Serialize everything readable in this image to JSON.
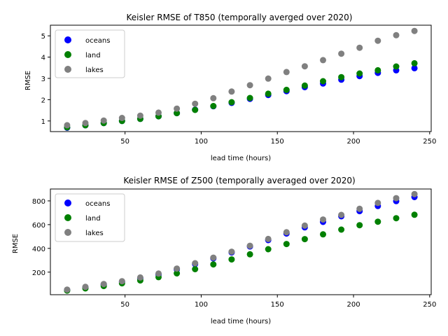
{
  "colors": {
    "oceans": "#0000ff",
    "land": "#008000",
    "lakes": "#808080",
    "axis": "#000000",
    "legend_border": "#cccccc"
  },
  "chart_data": [
    {
      "type": "scatter",
      "title": "Keisler RMSE of T850 (temporally averged over 2020)",
      "xlabel": "lead time (hours)",
      "ylabel": "RMSE",
      "xlim": [
        1,
        251
      ],
      "ylim": [
        0.5,
        5.5
      ],
      "xticks": [
        50,
        100,
        150,
        200,
        250
      ],
      "yticks": [
        1,
        2,
        3,
        4,
        5
      ],
      "grid": false,
      "legend_position": "upper-left",
      "x": [
        12,
        24,
        36,
        48,
        60,
        72,
        84,
        96,
        108,
        120,
        132,
        144,
        156,
        168,
        180,
        192,
        204,
        216,
        228,
        240
      ],
      "series": [
        {
          "name": "oceans",
          "color_key": "oceans",
          "values": [
            0.68,
            0.8,
            0.9,
            1.0,
            1.1,
            1.22,
            1.37,
            1.53,
            1.69,
            1.85,
            2.04,
            2.22,
            2.4,
            2.59,
            2.76,
            2.94,
            3.11,
            3.26,
            3.38,
            3.48
          ]
        },
        {
          "name": "land",
          "color_key": "land",
          "values": [
            0.7,
            0.8,
            0.9,
            1.0,
            1.1,
            1.22,
            1.37,
            1.52,
            1.7,
            1.88,
            2.08,
            2.28,
            2.46,
            2.66,
            2.87,
            3.06,
            3.23,
            3.38,
            3.56,
            3.71
          ]
        },
        {
          "name": "lakes",
          "color_key": "lakes",
          "values": [
            0.8,
            0.9,
            1.02,
            1.14,
            1.25,
            1.39,
            1.58,
            1.81,
            2.07,
            2.38,
            2.68,
            2.99,
            3.3,
            3.57,
            3.86,
            4.16,
            4.44,
            4.77,
            5.03,
            5.23
          ]
        }
      ]
    },
    {
      "type": "scatter",
      "title": "Keisler RMSE of Z500 (temporally averaged over 2020)",
      "xlabel": "lead time (hours)",
      "ylabel": "RMSE",
      "xlim": [
        1,
        251
      ],
      "ylim": [
        10,
        900
      ],
      "xticks": [
        50,
        100,
        150,
        200,
        250
      ],
      "yticks": [
        200,
        400,
        600,
        800
      ],
      "grid": false,
      "legend_position": "upper-left",
      "x": [
        12,
        24,
        36,
        48,
        60,
        72,
        84,
        96,
        108,
        120,
        132,
        144,
        156,
        168,
        180,
        192,
        204,
        216,
        228,
        240
      ],
      "series": [
        {
          "name": "oceans",
          "color_key": "oceans",
          "values": [
            50,
            72,
            95,
            118,
            148,
            180,
            222,
            268,
            316,
            366,
            416,
            470,
            525,
            577,
            623,
            670,
            714,
            757,
            798,
            832
          ]
        },
        {
          "name": "land",
          "color_key": "land",
          "values": [
            45,
            63,
            83,
            106,
            130,
            158,
            190,
            225,
            265,
            307,
            350,
            393,
            437,
            478,
            518,
            558,
            595,
            625,
            654,
            683
          ]
        },
        {
          "name": "lakes",
          "color_key": "lakes",
          "values": [
            53,
            76,
            100,
            124,
            155,
            188,
            230,
            275,
            322,
            372,
            422,
            479,
            536,
            592,
            643,
            682,
            733,
            783,
            823,
            857
          ]
        }
      ]
    }
  ]
}
